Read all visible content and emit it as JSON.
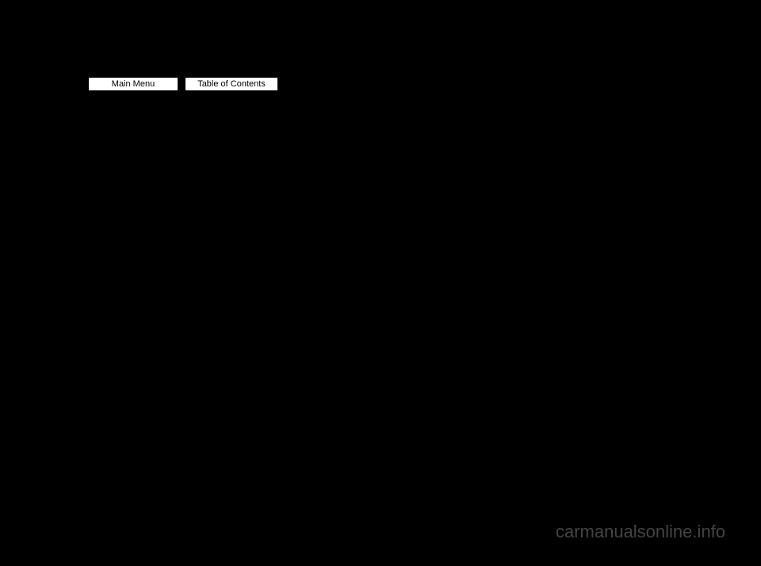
{
  "nav": {
    "main_menu": "Main Menu",
    "table_of_contents": "Table of Contents"
  },
  "page_links": {
    "link1": "",
    "link2": ""
  },
  "watermark": "carmanualsonline.info",
  "colors": {
    "background": "#000000",
    "button_bg": "#ffffff",
    "button_border": "#000000",
    "link_color": "#0000ff",
    "watermark_color": "#888888"
  }
}
